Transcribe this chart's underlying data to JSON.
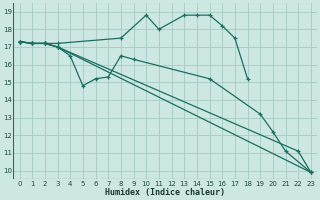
{
  "xlabel": "Humidex (Indice chaleur)",
  "bg_color": "#cde8e2",
  "grid_color": "#aacfc8",
  "line_color": "#1a6e62",
  "xlim": [
    -0.5,
    23.5
  ],
  "ylim": [
    9.5,
    19.5
  ],
  "xticks": [
    0,
    1,
    2,
    3,
    4,
    5,
    6,
    7,
    8,
    9,
    10,
    11,
    12,
    13,
    14,
    15,
    16,
    17,
    18,
    19,
    20,
    21,
    22,
    23
  ],
  "yticks": [
    10,
    11,
    12,
    13,
    14,
    15,
    16,
    17,
    18,
    19
  ],
  "series": [
    {
      "x": [
        0,
        1,
        2,
        3,
        8,
        10,
        11,
        13,
        14,
        15,
        16,
        17,
        18
      ],
      "y": [
        17.3,
        17.2,
        17.2,
        17.2,
        17.5,
        18.8,
        18.0,
        18.8,
        18.8,
        18.8,
        18.2,
        17.5,
        15.2
      ]
    },
    {
      "x": [
        0,
        1,
        2,
        3,
        4,
        5,
        6,
        7,
        8,
        9,
        15,
        19,
        20,
        21,
        23
      ],
      "y": [
        17.3,
        17.2,
        17.2,
        17.0,
        16.5,
        14.8,
        15.2,
        15.3,
        16.5,
        16.3,
        15.2,
        13.2,
        12.2,
        11.1,
        9.9
      ]
    },
    {
      "x": [
        0,
        1,
        2,
        3,
        23
      ],
      "y": [
        17.3,
        17.2,
        17.2,
        17.0,
        9.9
      ]
    },
    {
      "x": [
        0,
        1,
        2,
        3,
        22,
        23
      ],
      "y": [
        17.3,
        17.2,
        17.2,
        17.0,
        11.1,
        9.9
      ]
    }
  ]
}
